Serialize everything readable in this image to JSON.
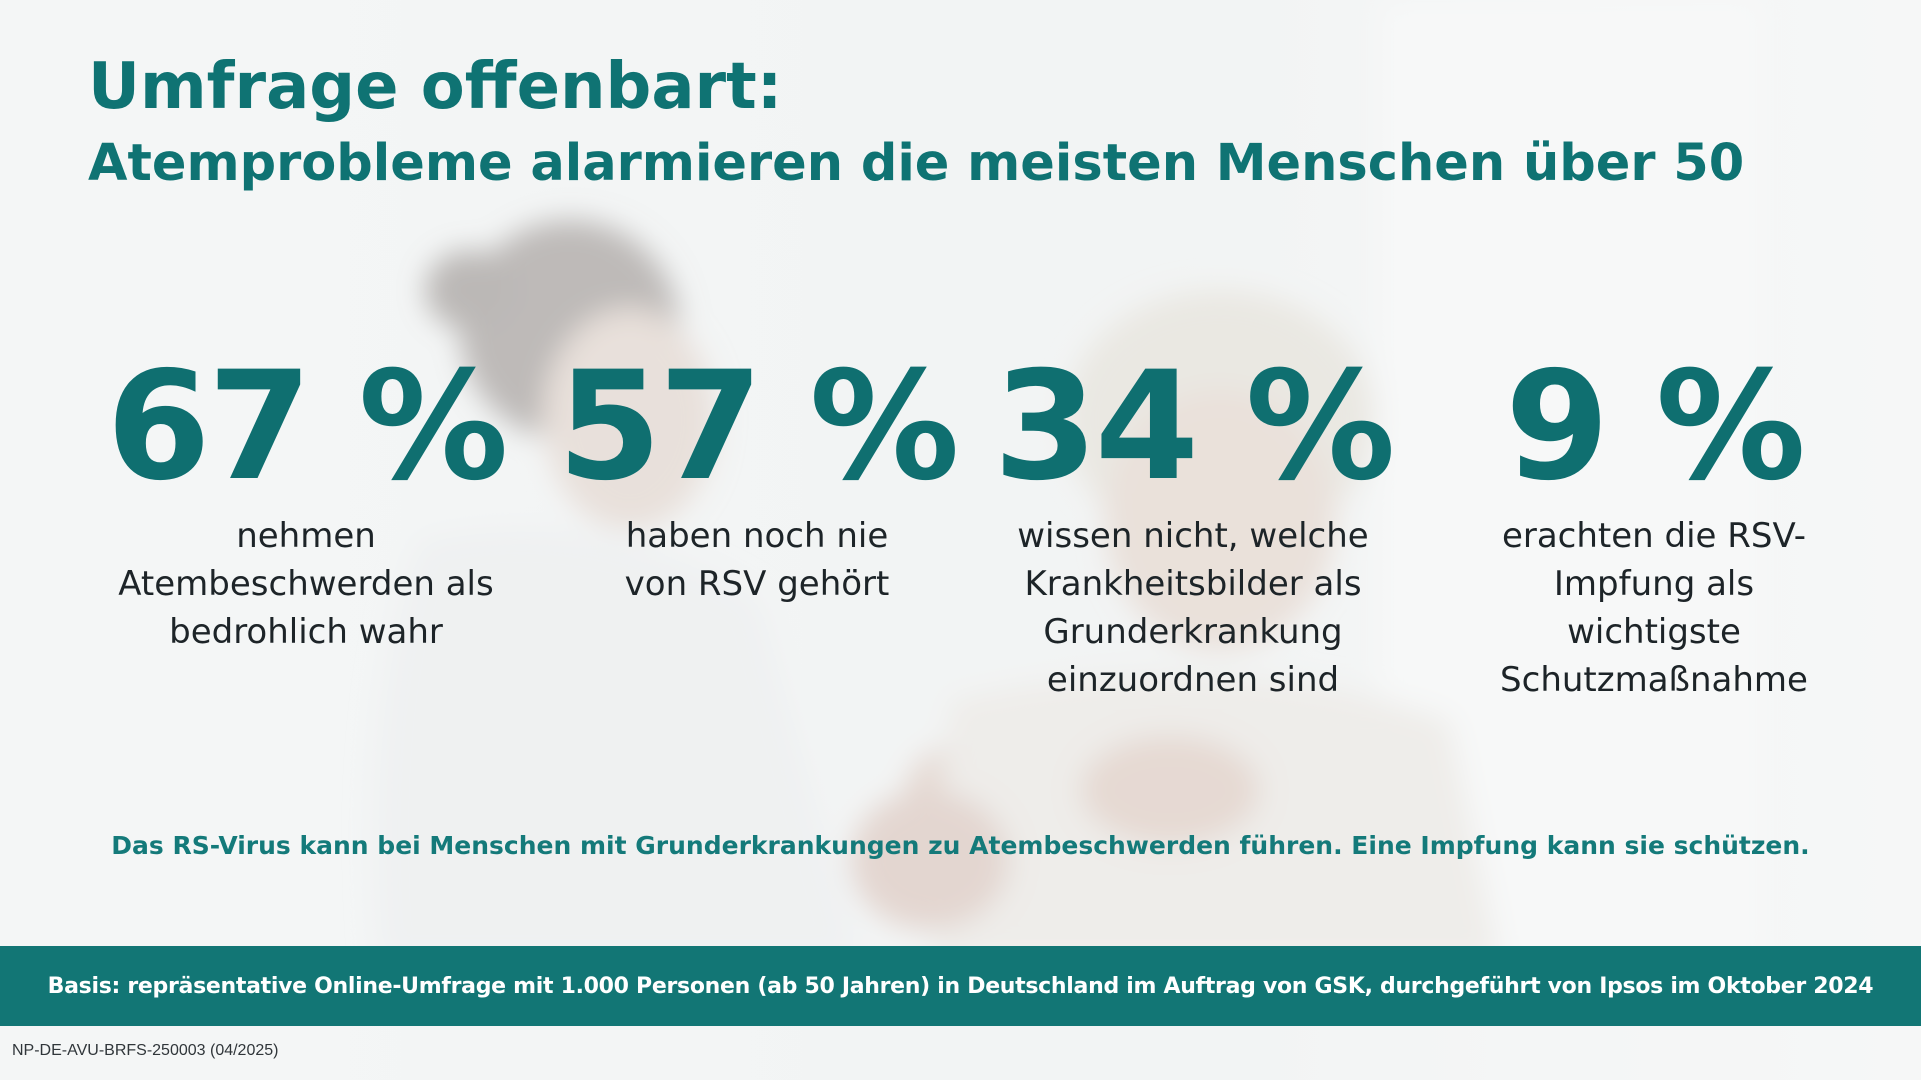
{
  "header": {
    "title": "Umfrage offenbart:",
    "subtitle": "Atemprobleme alarmieren die meisten Menschen über 50"
  },
  "stats": [
    {
      "value": "67 %",
      "description": "nehmen Atembeschwerden als bedrohlich wahr"
    },
    {
      "value": "57 %",
      "description": "haben noch nie von RSV gehört"
    },
    {
      "value": "34 %",
      "description": "wissen nicht, welche Krankheitsbilder als Grunderkrankung einzuordnen sind"
    },
    {
      "value": "9 %",
      "description": "erachten die RSV-Impfung als wichtigste Schutzmaßnahme"
    }
  ],
  "tagline": "Das RS-Virus kann bei Menschen mit Grunderkrankungen zu Atembeschwerden führen. Eine Impfung kann sie schützen.",
  "footer": {
    "basis": "Basis: repräsentative Online-Umfrage mit 1.000 Personen (ab 50 Jahren) in Deutschland im Auftrag von GSK, durchgeführt von Ipsos im Oktober 2024"
  },
  "document_code": "NP-DE-AVU-BRFS-250003 (04/2025)",
  "colors": {
    "primary_teal": "#0f7373",
    "footer_bar": "#127675",
    "body_text": "#1d2428",
    "background": "#f4f5f5"
  }
}
